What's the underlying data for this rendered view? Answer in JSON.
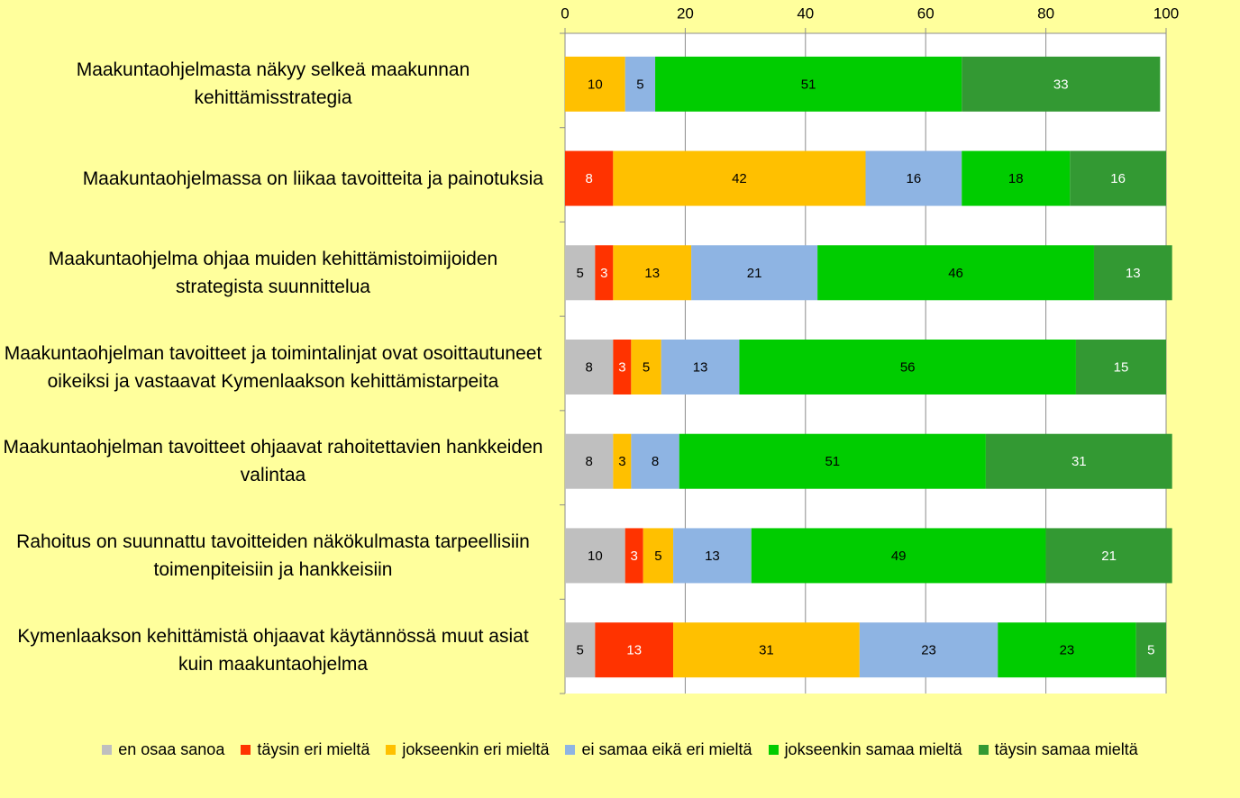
{
  "chart_data": {
    "type": "stacked-barh",
    "categories": [
      "Maakuntaohjelmasta näkyy selkeä maakunnan kehittämisstrategia",
      "Maakuntaohjelmassa on liikaa tavoitteita ja painotuksia",
      "Maakuntaohjelma ohjaa muiden kehittämistoimijoiden strategista suunnittelua",
      "Maakuntaohjelman tavoitteet ja toimintalinjat ovat osoittautuneet oikeiksi ja vastaavat Kymenlaakson kehittämistarpeita",
      "Maakuntaohjelman tavoitteet ohjaavat rahoitettavien hankkeiden valintaa",
      "Rahoitus on suunnattu tavoitteiden näkökulmasta tarpeellisiin toimenpiteisiin ja hankkeisiin",
      "Kymenlaakson kehittämistä ohjaavat käytännössä muut asiat kuin maakuntaohjelma"
    ],
    "series": [
      {
        "name": "en osaa sanoa",
        "color": "#bfbfbf",
        "label_color": "#000000",
        "values": [
          null,
          null,
          5,
          8,
          8,
          10,
          5
        ]
      },
      {
        "name": "täysin eri mieltä",
        "color": "#ff3300",
        "label_color": "#ffffff",
        "values": [
          null,
          8,
          3,
          3,
          null,
          3,
          13
        ]
      },
      {
        "name": "jokseenkin eri mieltä",
        "color": "#ffc000",
        "label_color": "#000000",
        "values": [
          10,
          42,
          13,
          5,
          3,
          5,
          31
        ]
      },
      {
        "name": "ei samaa eikä eri mieltä",
        "color": "#8eb4e3",
        "label_color": "#000000",
        "values": [
          5,
          16,
          21,
          13,
          8,
          13,
          23
        ]
      },
      {
        "name": "jokseenkin samaa mieltä",
        "color": "#00cc00",
        "label_color": "#000000",
        "values": [
          51,
          18,
          46,
          56,
          51,
          49,
          23
        ]
      },
      {
        "name": "täysin samaa mieltä",
        "color": "#339933",
        "label_color": "#ffffff",
        "values": [
          33,
          16,
          13,
          15,
          31,
          21,
          5
        ]
      }
    ],
    "xlim": [
      0,
      100
    ],
    "xticks": [
      0,
      20,
      40,
      60,
      80,
      100
    ],
    "grid": true,
    "legend": "bottom"
  }
}
